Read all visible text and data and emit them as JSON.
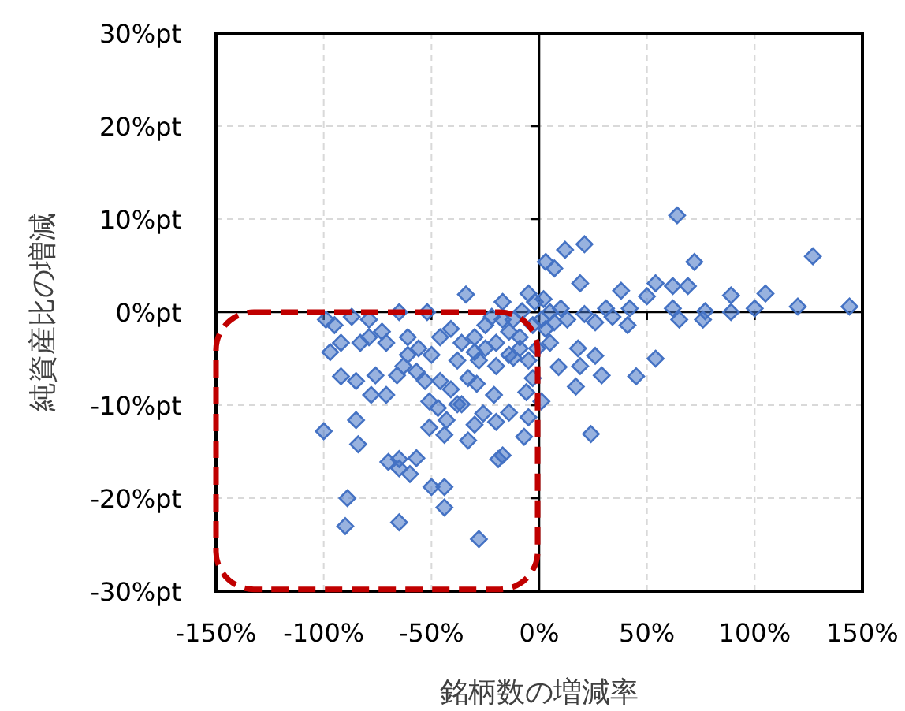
{
  "chart_data": {
    "type": "scatter",
    "xlabel": "銘柄数の増減率",
    "ylabel": "純資産比の増減",
    "xlim": [
      -150,
      150
    ],
    "ylim": [
      -30,
      30
    ],
    "xticks": [
      {
        "value": -150,
        "label": "-150%"
      },
      {
        "value": -100,
        "label": "-100%"
      },
      {
        "value": -50,
        "label": "-50%"
      },
      {
        "value": 0,
        "label": "0%"
      },
      {
        "value": 50,
        "label": "50%"
      },
      {
        "value": 100,
        "label": "100%"
      },
      {
        "value": 150,
        "label": "150%"
      }
    ],
    "yticks": [
      {
        "value": -30,
        "label": "-30%pt"
      },
      {
        "value": -20,
        "label": "-20%pt"
      },
      {
        "value": -10,
        "label": "-10%pt"
      },
      {
        "value": 0,
        "label": "0%pt"
      },
      {
        "value": 10,
        "label": "10%pt"
      },
      {
        "value": 20,
        "label": "20%pt"
      },
      {
        "value": 30,
        "label": "30%pt"
      }
    ],
    "grid": true,
    "marker": "diamond",
    "series": [
      {
        "color": "#4472c4",
        "x": [
          64,
          127,
          144,
          120,
          105,
          100,
          89,
          89,
          72,
          69,
          62,
          54,
          54,
          45,
          24,
          29,
          21,
          12,
          3,
          7,
          19,
          9,
          17,
          26,
          38,
          50,
          77,
          65,
          76,
          62,
          42,
          31,
          21,
          10,
          5,
          18,
          19,
          41,
          -100,
          -89,
          -90,
          -65,
          -28,
          -84,
          -85,
          -92,
          -85,
          -71,
          -78,
          -76,
          -66,
          -70,
          -65,
          -57,
          -65,
          -60,
          -50,
          -44,
          -44,
          -51,
          -44,
          -33,
          -43,
          -47,
          -51,
          -38,
          -36,
          -30,
          -26,
          -19,
          -17,
          -20,
          -14,
          -7,
          -5,
          -6,
          1,
          -3,
          -21,
          -29,
          -33,
          -41,
          -46,
          -53,
          -57,
          -63,
          -56,
          -61,
          -73,
          -83,
          -92,
          -97,
          -99,
          -95,
          -87,
          -79,
          -65,
          -52,
          -34,
          -41,
          -36,
          -30,
          -25,
          -20,
          -14,
          -9,
          -17,
          -5,
          -12,
          -22,
          -28,
          -20,
          -12,
          -46,
          -50,
          -61,
          -71,
          -79,
          -3,
          1,
          3,
          7,
          13,
          26,
          34,
          -8,
          -2,
          2,
          -14,
          -9,
          -5,
          -1,
          5,
          -17,
          -25,
          -30,
          -38
        ],
        "values": [
          10.4,
          6,
          0.6,
          0.6,
          2,
          0.4,
          1.8,
          0,
          5.4,
          2.8,
          2.8,
          3.1,
          -5,
          -6.9,
          -13.1,
          -6.8,
          7.3,
          6.7,
          5.4,
          4.7,
          3.1,
          -5.9,
          -8,
          -4.7,
          2.3,
          1.7,
          0.1,
          -0.8,
          -0.8,
          0.4,
          0.4,
          0.4,
          -0.2,
          0.4,
          0,
          -3.9,
          -5.8,
          -1.4,
          -12.8,
          -20,
          -23,
          -22.6,
          -24.4,
          -14.2,
          -11.6,
          -6.9,
          -7.4,
          -8.9,
          -8.9,
          -6.8,
          -6.8,
          -16.1,
          -15.8,
          -15.7,
          -16.8,
          -17.4,
          -18.8,
          -18.8,
          -21,
          -12.4,
          -13.2,
          -13.8,
          -11.6,
          -10.3,
          -9.6,
          -9.9,
          -9.9,
          -12.1,
          -10.9,
          -15.8,
          -15.4,
          -11.8,
          -10.8,
          -13.4,
          -11.3,
          -8.6,
          -9.6,
          -7.1,
          -8.9,
          -7.7,
          -7.1,
          -8.3,
          -7.4,
          -7.4,
          -6.4,
          -5.8,
          -3.9,
          -2.7,
          -2.1,
          -3.3,
          -3.3,
          -4.3,
          -0.8,
          -1.4,
          -0.5,
          -0.8,
          0,
          0,
          1.9,
          -1.8,
          -3.3,
          -2.7,
          -1.4,
          -3.3,
          -4.6,
          -2.7,
          1.1,
          2,
          -0.8,
          -0.5,
          -5.2,
          -5.8,
          -4.9,
          -2.7,
          -4.6,
          -4.6,
          -3.3,
          -2.7,
          -1.4,
          -0.8,
          -1.8,
          -1.1,
          -0.8,
          -1.1,
          -0.5,
          0.1,
          1.1,
          1.4,
          -2.1,
          -3.9,
          -5.2,
          -3.9,
          -3.3,
          -0.8,
          -3.9,
          -4.3,
          -5.2
        ]
      }
    ]
  }
}
